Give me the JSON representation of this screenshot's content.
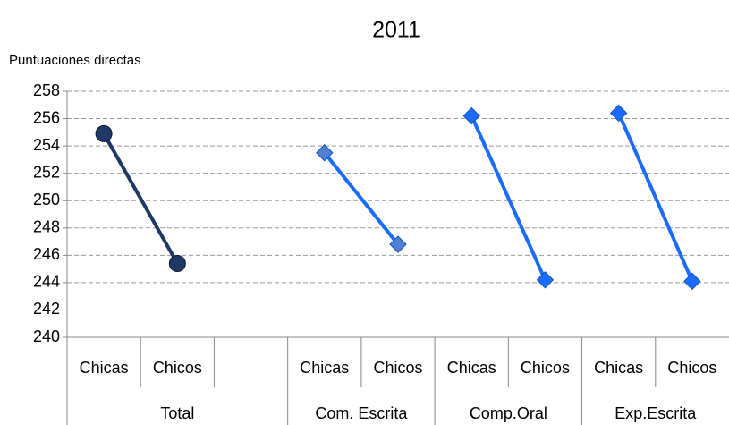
{
  "chart_data": {
    "type": "line",
    "title": "2011",
    "y_label": "Puntuaciones directas",
    "categories": [
      "Chicas",
      "Chicos",
      null,
      "Chicas",
      "Chicos",
      "Chicas",
      "Chicos",
      "Chicas",
      "Chicos"
    ],
    "series": [
      {
        "name": "Total",
        "color": "#1f3864",
        "marker": "circle",
        "marker_color": "#1f3864",
        "values": [
          254.9,
          245.4,
          null,
          null,
          null,
          null,
          null,
          null,
          null
        ]
      },
      {
        "name": "Com. Escrita",
        "color": "#1a6cff",
        "marker": "diamond",
        "marker_color": "#4f81d0",
        "values": [
          null,
          null,
          null,
          253.5,
          246.8,
          null,
          null,
          null,
          null
        ]
      },
      {
        "name": "Comp.Oral",
        "color": "#1a6cff",
        "marker": "diamond",
        "marker_color": "#1a6cff",
        "values": [
          null,
          null,
          null,
          null,
          null,
          256.2,
          244.2,
          null,
          null
        ]
      },
      {
        "name": "Exp.Escrita",
        "color": "#1a6cff",
        "marker": "diamond",
        "marker_color": "#1a6cff",
        "values": [
          null,
          null,
          null,
          null,
          null,
          null,
          null,
          256.4,
          244.1
        ]
      }
    ],
    "ylim": [
      240,
      258
    ],
    "yticks": [
      240,
      242,
      244,
      246,
      248,
      250,
      252,
      254,
      256,
      258
    ],
    "grid": true
  }
}
